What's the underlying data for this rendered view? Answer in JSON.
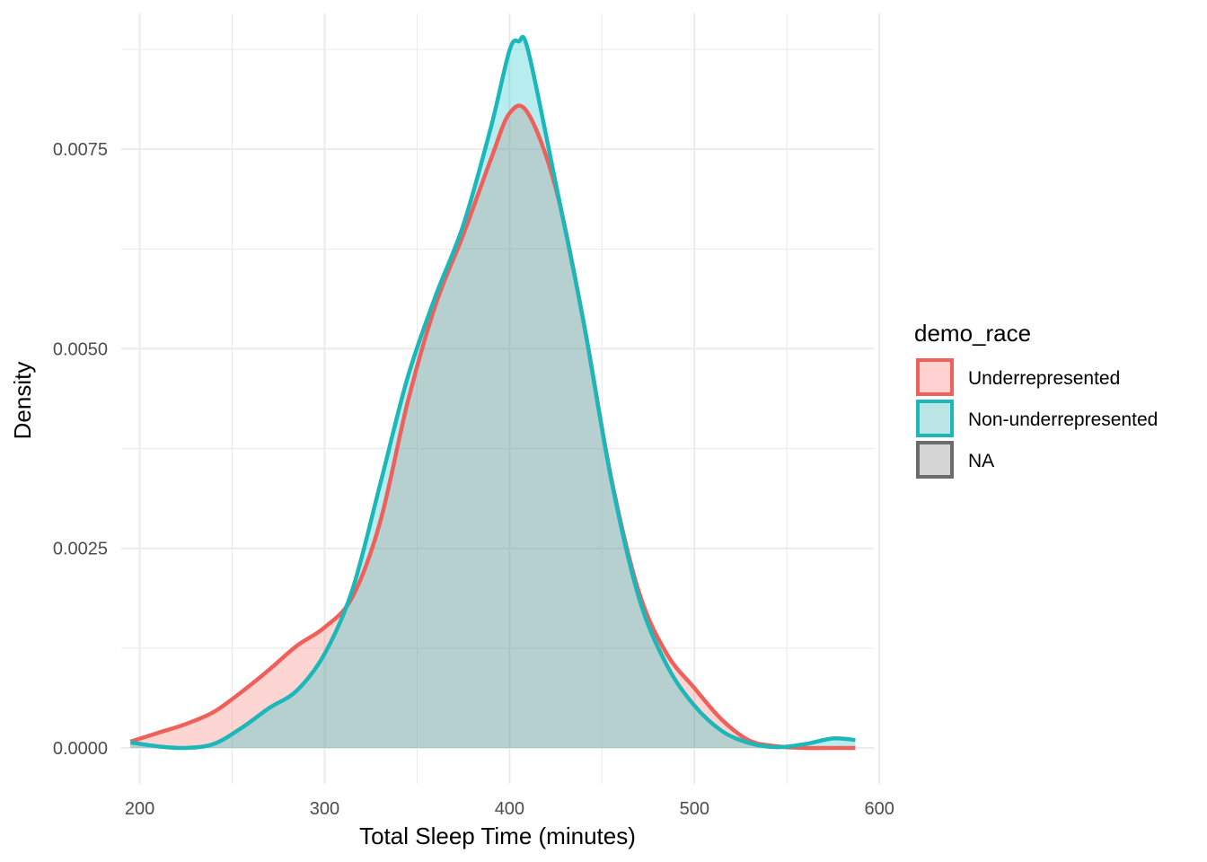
{
  "chart_data": {
    "type": "area",
    "title": "",
    "xlabel": "Total Sleep Time (minutes)",
    "ylabel": "Density",
    "xlim": [
      190,
      597
    ],
    "ylim": [
      -0.00045,
      0.0092
    ],
    "x_ticks": [
      200,
      300,
      400,
      500,
      600
    ],
    "x_tick_labels": [
      "200",
      "300",
      "400",
      "500",
      "600"
    ],
    "y_ticks": [
      0,
      0.0025,
      0.005,
      0.0075
    ],
    "y_tick_labels": [
      "0.0000",
      "0.0025",
      "0.0050",
      "0.0075"
    ],
    "grid": true,
    "legend": {
      "title": "demo_race",
      "placement": "right",
      "entries": [
        {
          "label": "Underrepresented",
          "line": "#f0605b",
          "fill": "#ffd1d0"
        },
        {
          "label": "Non-underrepresented",
          "line": "#1cb7b9",
          "fill": "#bce6e6"
        },
        {
          "label": "NA",
          "line": "#6b6b6b",
          "fill": "#d6d6d6"
        }
      ]
    },
    "series": [
      {
        "name": "Underrepresented",
        "color": "#f0605b",
        "fill": "rgba(248,118,109,0.30)",
        "x": [
          195,
          210,
          225,
          240,
          255,
          270,
          285,
          300,
          315,
          330,
          345,
          360,
          375,
          390,
          400,
          410,
          425,
          440,
          455,
          470,
          485,
          500,
          515,
          530,
          545,
          560,
          575,
          587
        ],
        "y": [
          8e-05,
          0.00019,
          0.0003,
          0.00045,
          0.0007,
          0.00098,
          0.00128,
          0.00151,
          0.00189,
          0.00283,
          0.00434,
          0.00555,
          0.00643,
          0.00738,
          0.00795,
          0.00795,
          0.00701,
          0.00534,
          0.00338,
          0.00195,
          0.00118,
          0.00075,
          0.00035,
          9e-05,
          2e-05,
          0.0,
          0.0,
          0.0
        ]
      },
      {
        "name": "Non-underrepresented",
        "color": "#1cb7b9",
        "fill": "rgba(0,191,196,0.28)",
        "x": [
          195,
          210,
          225,
          240,
          255,
          270,
          285,
          300,
          315,
          330,
          345,
          360,
          375,
          390,
          400,
          405,
          410,
          425,
          440,
          455,
          470,
          485,
          500,
          515,
          530,
          545,
          560,
          575,
          587
        ],
        "y": [
          7e-05,
          2e-05,
          0.0,
          5e-05,
          0.00025,
          0.0005,
          0.00072,
          0.00118,
          0.00198,
          0.0033,
          0.00465,
          0.00566,
          0.00655,
          0.00778,
          0.00874,
          0.00885,
          0.00874,
          0.00707,
          0.00534,
          0.00336,
          0.00188,
          0.00104,
          0.00053,
          0.00021,
          6e-05,
          1e-05,
          5e-05,
          0.00012,
          0.0001
        ]
      }
    ]
  }
}
